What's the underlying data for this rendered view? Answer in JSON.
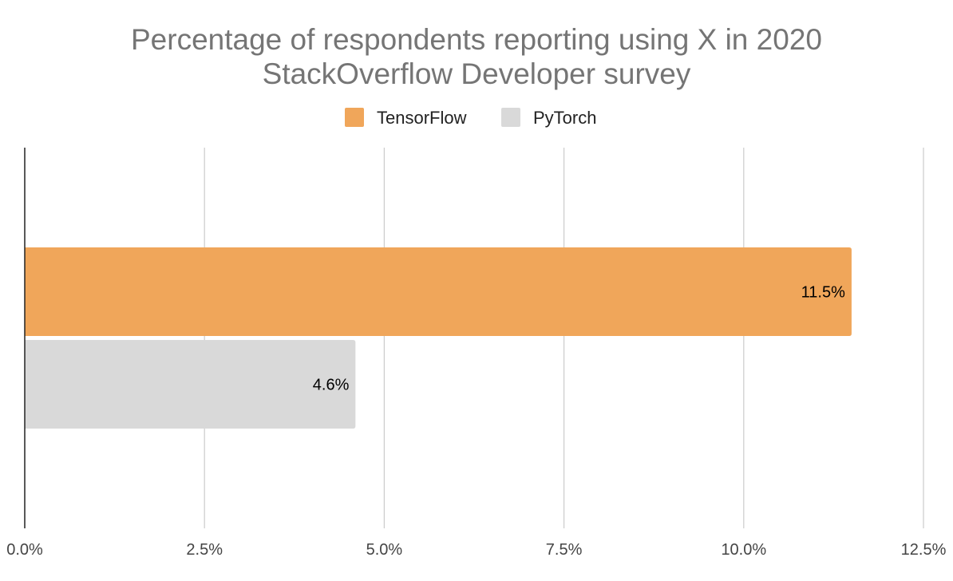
{
  "chart_data": {
    "type": "bar",
    "orientation": "horizontal",
    "title_lines": [
      "Percentage of respondents reporting using X in 2020",
      "StackOverflow Developer survey"
    ],
    "series": [
      {
        "name": "TensorFlow",
        "values": [
          11.5
        ],
        "label": "11.5%",
        "color": "#f0a65a"
      },
      {
        "name": "PyTorch",
        "values": [
          4.6
        ],
        "label": "4.6%",
        "color": "#d9d9d9"
      }
    ],
    "xlim": [
      0,
      12.5
    ],
    "x_ticks": [
      {
        "value": 0,
        "label": "0.0%"
      },
      {
        "value": 2.5,
        "label": "2.5%"
      },
      {
        "value": 5,
        "label": "5.0%"
      },
      {
        "value": 7.5,
        "label": "7.5%"
      },
      {
        "value": 10,
        "label": "10.0%"
      },
      {
        "value": 12.5,
        "label": "12.5%"
      }
    ],
    "grid": true,
    "legend_position": "top-center"
  }
}
